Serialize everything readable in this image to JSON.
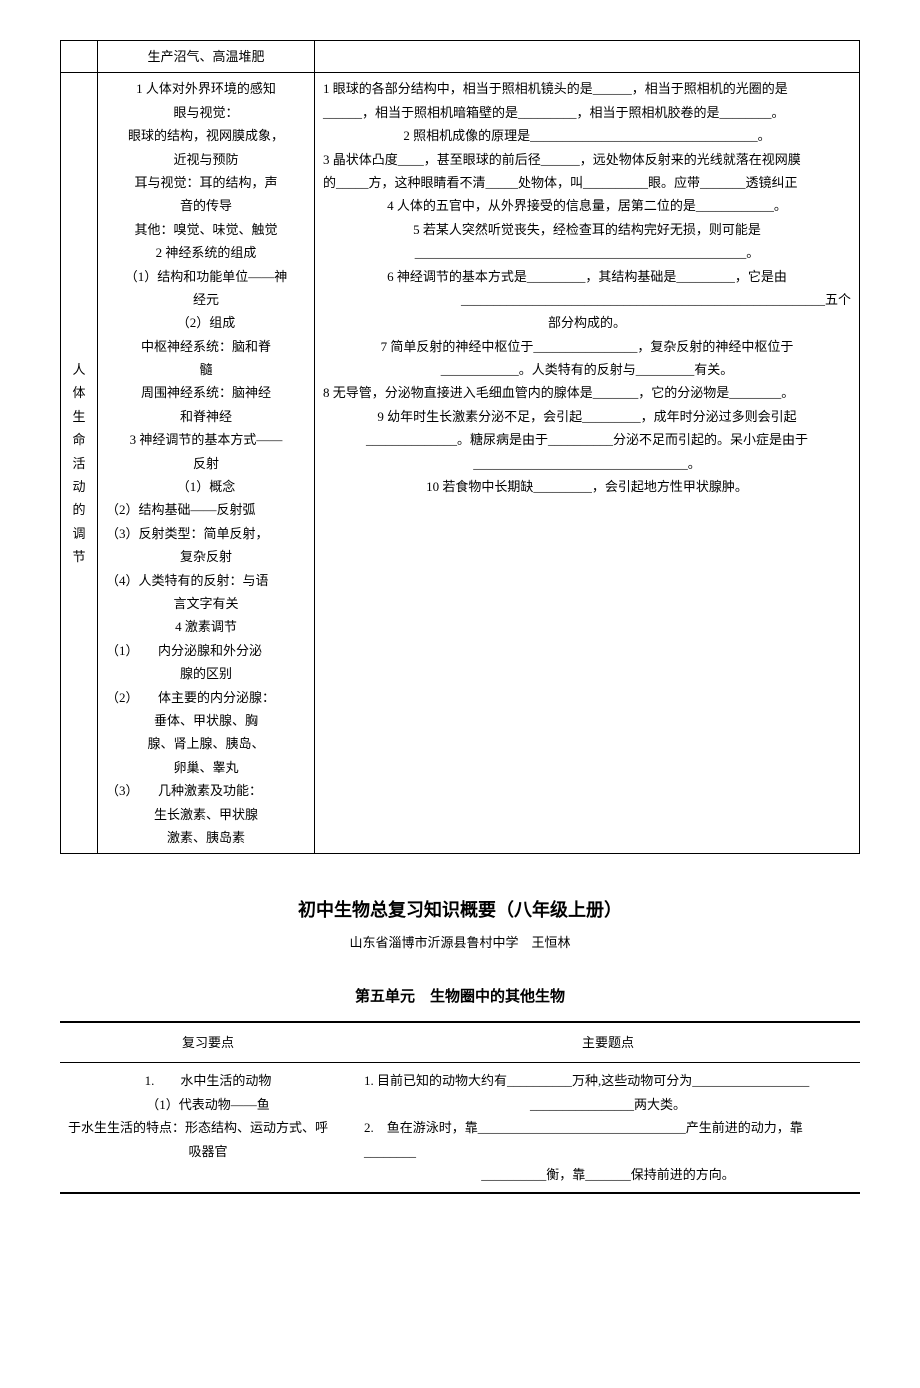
{
  "table1": {
    "row0_col2": "生产沼气、高温堆肥",
    "vcol": [
      "人",
      "体",
      "生",
      "命",
      "活",
      "动",
      "的",
      "调",
      "节"
    ],
    "col2_lines": [
      "1 人体对外界环境的感知",
      "眼与视觉：",
      "眼球的结构，视网膜成象，",
      "近视与预防",
      "耳与视觉：耳的结构，声",
      "音的传导",
      "其他：嗅觉、味觉、触觉",
      "2 神经系统的组成",
      "（1）结构和功能单位——神",
      "经元",
      "（2）组成",
      "中枢神经系统：脑和脊",
      "髓",
      "周围神经系统：脑神经",
      "和脊神经",
      "3 神经调节的基本方式——",
      "反射",
      "（1）概念",
      "（2）结构基础——反射弧",
      "（3）反射类型：简单反射，",
      "复杂反射",
      "（4）人类特有的反射：与语",
      "言文字有关",
      "4 激素调节",
      "（1）　　内分泌腺和外分泌",
      "腺的区别",
      "（2）　　体主要的内分泌腺：",
      "垂体、甲状腺、胸",
      "腺、肾上腺、胰岛、",
      "卵巢、睾丸",
      "（3）　　几种激素及功能：",
      "生长激素、甲状腺",
      "激素、胰岛素"
    ],
    "col3_lines": [
      "1 眼球的各部分结构中，相当于照相机镜头的是______，相当于照相机的光圈的是",
      "______，相当于照相机暗箱壁的是_________，相当于照相机胶卷的是________。",
      "2 照相机成像的原理是___________________________________。",
      "3 晶状体凸度____，甚至眼球的前后径______，远处物体反射来的光线就落在视网膜",
      "的_____方，这种眼睛看不清_____处物体，叫__________眼。应带_______透镜纠正",
      "4 人体的五官中，从外界接受的信息量，居第二位的是____________。",
      "5 若某人突然听觉丧失，经检查耳的结构完好无损，则可能是",
      "___________________________________________________。",
      "6 神经调节的基本方式是_________，其结构基础是_________，它是由",
      "________________________________________________________五个",
      "部分构成的。",
      "7 简单反射的神经中枢位于________________，复杂反射的神经中枢位于",
      "____________。人类特有的反射与_________有关。",
      "8 无导管，分泌物直接进入毛细血管内的腺体是_______，它的分泌物是________。",
      "9 幼年时生长激素分泌不足，会引起_________，成年时分泌过多则会引起",
      "______________。糖尿病是由于__________分泌不足而引起的。呆小症是由于",
      "_________________________________。",
      "10 若食物中长期缺_________，会引起地方性甲状腺肿。"
    ]
  },
  "heading": {
    "title": "初中生物总复习知识概要（八年级上册）",
    "subtitle": "山东省淄博市沂源县鲁村中学　王恒林",
    "unit": "第五单元　生物圈中的其他生物"
  },
  "table2": {
    "headers": [
      "复习要点",
      "主要题点"
    ],
    "c1_lines": [
      "1.　　水中生活的动物",
      "（1）代表动物——鱼",
      "于水生生活的特点：形态结构、运动方式、呼",
      "吸器官"
    ],
    "c2_lines": [
      "1. 目前已知的动物大约有__________万种,这些动物可分为__________________",
      "________________两大类。",
      "2.　鱼在游泳时，靠________________________________产生前进的动力，靠________",
      "__________衡，靠_______保持前进的方向。"
    ]
  }
}
